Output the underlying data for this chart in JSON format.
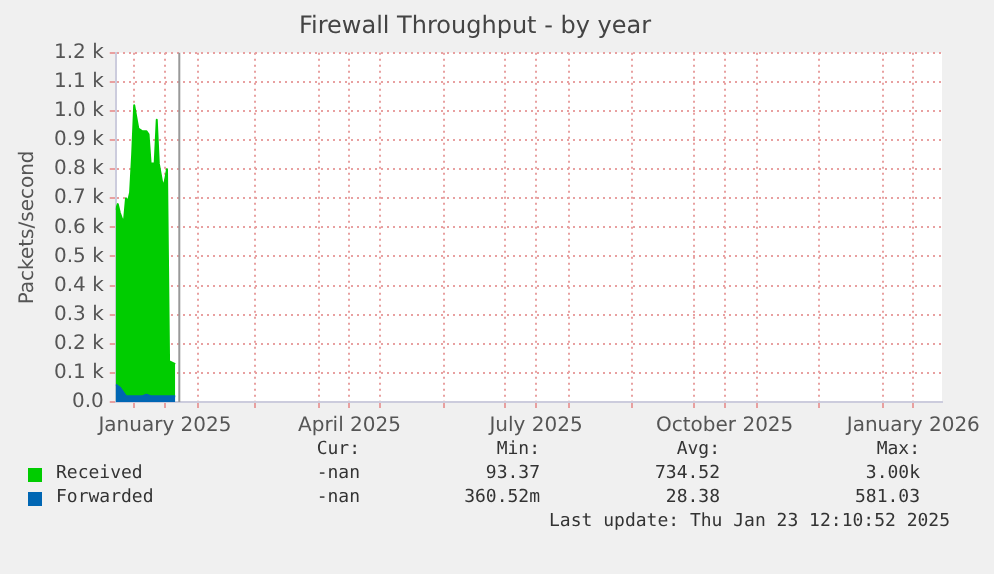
{
  "chart_data": {
    "type": "area",
    "title": "Firewall Throughput - by year",
    "ylabel": "Packets/second",
    "series": [
      {
        "name": "Received",
        "color": "#00cc00",
        "x": [
          "2024-12-23",
          "2024-12-24",
          "2024-12-25",
          "2024-12-26",
          "2024-12-27",
          "2024-12-28",
          "2024-12-29",
          "2024-12-30",
          "2024-12-31",
          "2025-01-01",
          "2025-01-02",
          "2025-01-03",
          "2025-01-05",
          "2025-01-07",
          "2025-01-08",
          "2025-01-09",
          "2025-01-11",
          "2025-01-12",
          "2025-01-13",
          "2025-01-15",
          "2025-01-16",
          "2025-01-17",
          "2025-01-18",
          "2025-01-21"
        ],
        "values": [
          0.66,
          0.68,
          0.65,
          0.63,
          0.62,
          0.7,
          0.69,
          0.72,
          0.85,
          1.02,
          0.98,
          0.94,
          0.93,
          0.93,
          0.92,
          0.82,
          0.82,
          0.97,
          0.82,
          0.74,
          0.76,
          0.8,
          0.14,
          0.13
        ]
      },
      {
        "name": "Forwarded",
        "color": "#0066b3",
        "x": [
          "2024-12-23",
          "2024-12-25",
          "2024-12-27",
          "2024-12-28",
          "2025-01-05",
          "2025-01-07",
          "2025-01-09",
          "2025-01-21"
        ],
        "values": [
          0.06,
          0.05,
          0.03,
          0.02,
          0.02,
          0.025,
          0.02,
          0.02
        ]
      }
    ],
    "xlim": [
      "2024-12-23",
      "2026-01-30"
    ],
    "xticks": [
      {
        "value": "2025-01-01",
        "label": null
      },
      {
        "value": "2025-01-16",
        "label": "January 2025"
      },
      {
        "value": "2025-02-01",
        "label": null
      },
      {
        "value": "2025-03-01",
        "label": null
      },
      {
        "value": "2025-04-01",
        "label": null
      },
      {
        "value": "2025-04-16",
        "label": "April 2025"
      },
      {
        "value": "2025-05-01",
        "label": null
      },
      {
        "value": "2025-06-01",
        "label": null
      },
      {
        "value": "2025-07-01",
        "label": null
      },
      {
        "value": "2025-07-16",
        "label": "July 2025"
      },
      {
        "value": "2025-08-01",
        "label": null
      },
      {
        "value": "2025-09-01",
        "label": null
      },
      {
        "value": "2025-10-01",
        "label": null
      },
      {
        "value": "2025-10-16",
        "label": "October 2025"
      },
      {
        "value": "2025-11-01",
        "label": null
      },
      {
        "value": "2025-12-01",
        "label": null
      },
      {
        "value": "2026-01-01",
        "label": null
      },
      {
        "value": "2026-01-16",
        "label": "January 2026"
      }
    ],
    "ylim": [
      0,
      1.2
    ],
    "yticks": [
      {
        "value": 0,
        "label": "0.0"
      },
      {
        "value": 0.1,
        "label": "0.1 k"
      },
      {
        "value": 0.2,
        "label": "0.2 k"
      },
      {
        "value": 0.3,
        "label": "0.3 k"
      },
      {
        "value": 0.4,
        "label": "0.4 k"
      },
      {
        "value": 0.5,
        "label": "0.5 k"
      },
      {
        "value": 0.6,
        "label": "0.6 k"
      },
      {
        "value": 0.7,
        "label": "0.7 k"
      },
      {
        "value": 0.8,
        "label": "0.8 k"
      },
      {
        "value": 0.9,
        "label": "0.9 k"
      },
      {
        "value": 1.0,
        "label": "1.0 k"
      },
      {
        "value": 1.1,
        "label": "1.1 k"
      },
      {
        "value": 1.2,
        "label": "1.2 k"
      }
    ],
    "ref_lines": [
      {
        "axis": "x",
        "value": "2025-01-23",
        "color": "#999999"
      }
    ],
    "grid": true,
    "legend": "bottom",
    "annotations": [
      "Cur:",
      "Min:",
      "Avg:",
      "Max:",
      "-nan",
      "93.37",
      "734.52",
      "3.00k",
      "-nan",
      "360.52m",
      "28.38",
      "581.03",
      "Last update: Thu Jan 23 12:10:52 2025"
    ]
  }
}
